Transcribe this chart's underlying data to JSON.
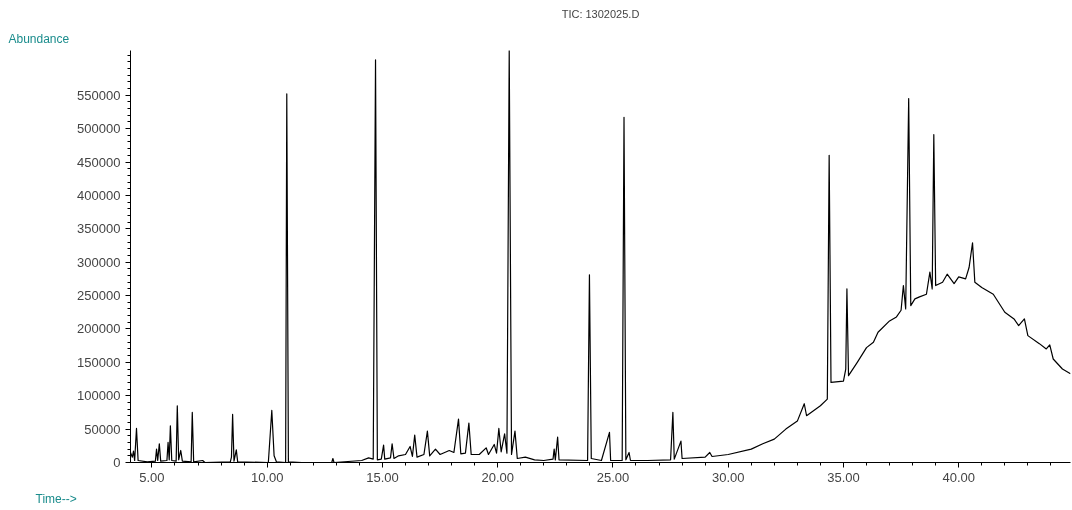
{
  "chart_data": {
    "type": "line",
    "title": "TIC: 1302025.D",
    "xlabel": "Time-->",
    "ylabel": "Abundance",
    "x": [
      4.07,
      4.15,
      4.2,
      4.25,
      4.33,
      4.4,
      4.8,
      5.15,
      5.2,
      5.25,
      5.32,
      5.38,
      5.65,
      5.7,
      5.75,
      5.8,
      5.86,
      6.05,
      6.1,
      6.16,
      6.25,
      6.32,
      6.7,
      6.75,
      6.81,
      7.2,
      7.3,
      8.4,
      8.45,
      8.5,
      8.56,
      8.66,
      8.72,
      10.05,
      10.2,
      10.3,
      10.4,
      10.8,
      10.85,
      10.92,
      11.5,
      12.8,
      12.85,
      12.9,
      14.1,
      14.4,
      14.6,
      14.7,
      14.78,
      14.95,
      15.05,
      15.1,
      15.35,
      15.42,
      15.5,
      15.7,
      16.0,
      16.2,
      16.3,
      16.4,
      16.5,
      16.8,
      16.95,
      17.05,
      17.3,
      17.5,
      17.9,
      18.1,
      18.3,
      18.4,
      18.6,
      18.75,
      18.85,
      19.2,
      19.5,
      19.6,
      19.85,
      19.95,
      20.05,
      20.15,
      20.3,
      20.4,
      20.5,
      20.6,
      20.75,
      20.85,
      21.2,
      21.6,
      22.0,
      22.4,
      22.45,
      22.5,
      22.6,
      22.66,
      23.9,
      23.98,
      24.06,
      24.5,
      24.85,
      24.9,
      25.4,
      25.48,
      25.56,
      25.7,
      25.76,
      26.5,
      27.5,
      27.6,
      27.66,
      27.95,
      28.0,
      29.0,
      29.2,
      29.3,
      30.0,
      31.0,
      31.5,
      32.0,
      32.5,
      33.0,
      33.3,
      33.4,
      34.0,
      34.3,
      34.38,
      34.46,
      35.0,
      35.1,
      35.15,
      35.22,
      35.6,
      36.0,
      36.3,
      36.5,
      37.0,
      37.3,
      37.5,
      37.6,
      37.7,
      37.83,
      37.92,
      38.1,
      38.3,
      38.6,
      38.75,
      38.85,
      38.92,
      39.0,
      39.3,
      39.5,
      39.8,
      40.0,
      40.3,
      40.45,
      40.6,
      40.7,
      41.0,
      41.5,
      42.0,
      42.4,
      42.6,
      42.85,
      43.0,
      43.5,
      43.8,
      43.95,
      44.1,
      44.5,
      44.85
    ],
    "series": [
      {
        "color": "#000000",
        "values": [
          15000,
          8000,
          17000,
          3000,
          51000,
          3000,
          1000,
          2000,
          20000,
          3000,
          28000,
          2000,
          3000,
          30000,
          4000,
          55000,
          3000,
          2000,
          85000,
          4000,
          18000,
          2000,
          1000,
          75000,
          1000,
          3000,
          0,
          1000,
          8000,
          72000,
          2000,
          19000,
          1000,
          0,
          78000,
          10000,
          1000,
          0,
          552000,
          1000,
          0,
          0,
          6000,
          0,
          3000,
          7000,
          5000,
          603000,
          4000,
          5000,
          26000,
          5000,
          7000,
          28000,
          6000,
          10000,
          12000,
          24000,
          9000,
          41000,
          8000,
          12000,
          47000,
          10000,
          20000,
          12000,
          18000,
          15000,
          65000,
          13000,
          14000,
          59000,
          12000,
          12000,
          22000,
          12000,
          27000,
          14000,
          51000,
          16000,
          43000,
          14000,
          617000,
          12000,
          47000,
          6000,
          8000,
          4000,
          3000,
          5000,
          20000,
          4000,
          38000,
          4000,
          3000,
          281000,
          6000,
          3000,
          45000,
          3000,
          3000,
          517000,
          4000,
          15000,
          3000,
          3000,
          4000,
          75000,
          5000,
          32000,
          6000,
          8000,
          15000,
          9000,
          12000,
          20000,
          28000,
          35000,
          50000,
          62000,
          88000,
          70000,
          85000,
          95000,
          460000,
          120000,
          122000,
          140000,
          260000,
          130000,
          150000,
          172000,
          180000,
          195000,
          212000,
          218000,
          228000,
          265000,
          230000,
          545000,
          235000,
          245000,
          248000,
          252000,
          285000,
          260000,
          491000,
          265000,
          270000,
          282000,
          268000,
          278000,
          275000,
          292000,
          329000,
          270000,
          262000,
          252000,
          225000,
          215000,
          205000,
          215000,
          190000,
          178000,
          170000,
          176000,
          155000,
          140000,
          133000
        ]
      }
    ],
    "xlim": [
      4.07,
      44.85
    ],
    "ylim": [
      0,
      617000
    ],
    "xticks": [
      {
        "value": 5,
        "label": "5.00"
      },
      {
        "value": 10,
        "label": "10.00"
      },
      {
        "value": 15,
        "label": "15.00"
      },
      {
        "value": 20,
        "label": "20.00"
      },
      {
        "value": 25,
        "label": "25.00"
      },
      {
        "value": 30,
        "label": "30.00"
      },
      {
        "value": 35,
        "label": "35.00"
      },
      {
        "value": 40,
        "label": "40.00"
      }
    ],
    "yticks": [
      0,
      50000,
      100000,
      150000,
      200000,
      250000,
      300000,
      350000,
      400000,
      450000,
      500000,
      550000
    ],
    "grid": false,
    "line_style": "solid"
  }
}
